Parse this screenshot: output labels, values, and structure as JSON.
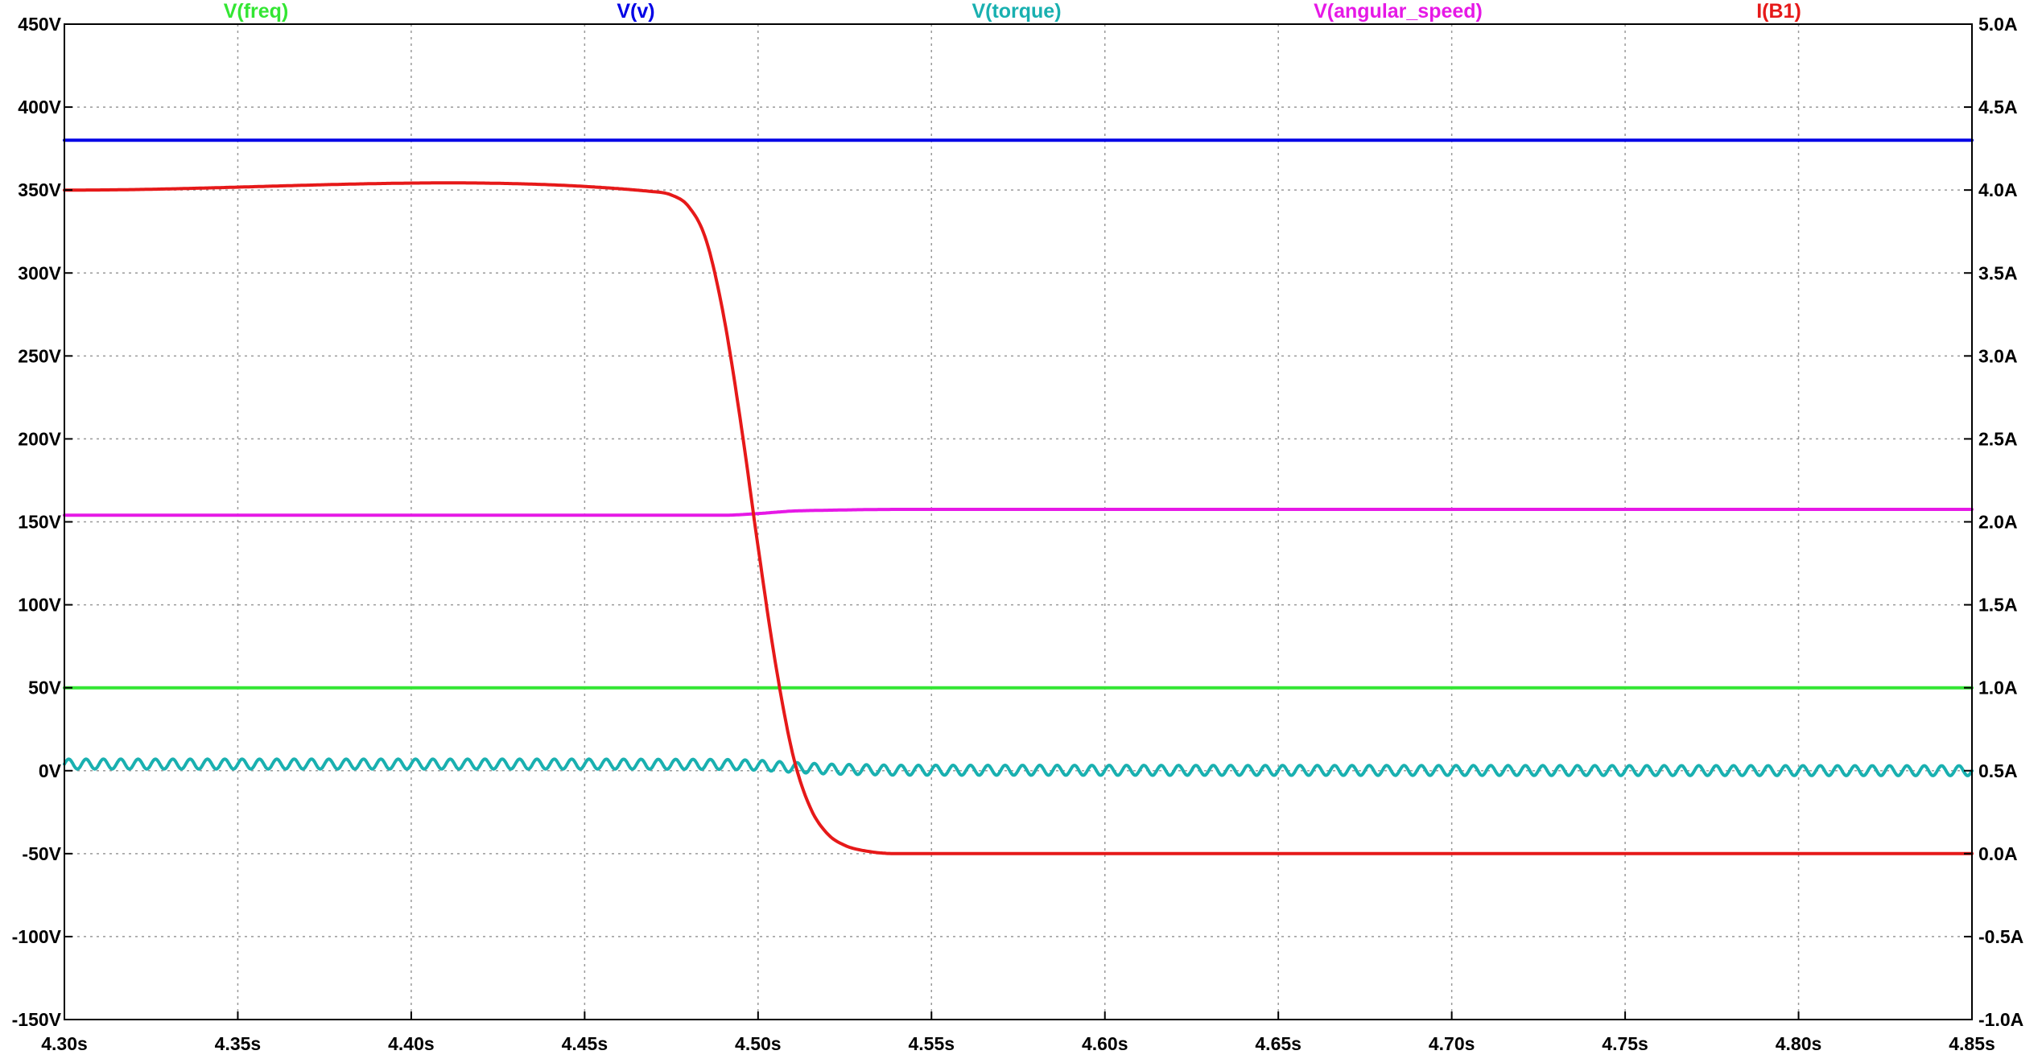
{
  "chart_data": {
    "type": "line",
    "xlabel": "",
    "x_ticks": [
      "4.30s",
      "4.35s",
      "4.40s",
      "4.45s",
      "4.50s",
      "4.55s",
      "4.60s",
      "4.65s",
      "4.70s",
      "4.75s",
      "4.80s",
      "4.85s"
    ],
    "xlim": [
      4.3,
      4.85
    ],
    "left_axis": {
      "label": "",
      "ylim": [
        -150,
        450
      ],
      "ticks": [
        "450V",
        "400V",
        "350V",
        "300V",
        "250V",
        "200V",
        "150V",
        "100V",
        "50V",
        "0V",
        "-50V",
        "-100V",
        "-150V"
      ]
    },
    "right_axis": {
      "label": "",
      "ylim": [
        -1.0,
        5.0
      ],
      "ticks": [
        "5.0A",
        "4.5A",
        "4.0A",
        "3.5A",
        "3.0A",
        "2.5A",
        "2.0A",
        "1.5A",
        "1.0A",
        "0.5A",
        "0.0A",
        "-0.5A",
        "-1.0A"
      ]
    },
    "grid": true,
    "legend_placement": "top",
    "series": [
      {
        "name": "V(freq)",
        "color": "#33e633",
        "axis": "left",
        "x": [
          4.3,
          4.85
        ],
        "y": [
          50,
          50
        ]
      },
      {
        "name": "V(v)",
        "color": "#0000e6",
        "axis": "left",
        "x": [
          4.3,
          4.85
        ],
        "y": [
          380,
          380
        ]
      },
      {
        "name": "V(torque)",
        "color": "#19b0b0",
        "axis": "left",
        "x": [
          4.3,
          4.45,
          4.49,
          4.5,
          4.51,
          4.52,
          4.54,
          4.85
        ],
        "y": [
          4,
          4,
          3.8,
          3.3,
          2,
          1,
          0.3,
          0
        ],
        "ripple_amplitude": 3,
        "ripple_period": 0.005
      },
      {
        "name": "V(angular_speed)",
        "color": "#e619e6",
        "axis": "left",
        "x": [
          4.3,
          4.49,
          4.5,
          4.51,
          4.52,
          4.54,
          4.85
        ],
        "y": [
          154,
          154,
          155,
          156.5,
          157,
          157.5,
          157.5
        ]
      },
      {
        "name": "I(B1)",
        "color": "#e61919",
        "axis": "right",
        "x": [
          4.3,
          4.47,
          4.475,
          4.48,
          4.485,
          4.49,
          4.495,
          4.5,
          4.505,
          4.51,
          4.515,
          4.52,
          4.525,
          4.53,
          4.54,
          4.85
        ],
        "y": [
          4.0,
          3.99,
          3.97,
          3.9,
          3.7,
          3.25,
          2.6,
          1.85,
          1.15,
          0.6,
          0.28,
          0.12,
          0.05,
          0.02,
          0.0,
          0.0
        ]
      }
    ]
  }
}
